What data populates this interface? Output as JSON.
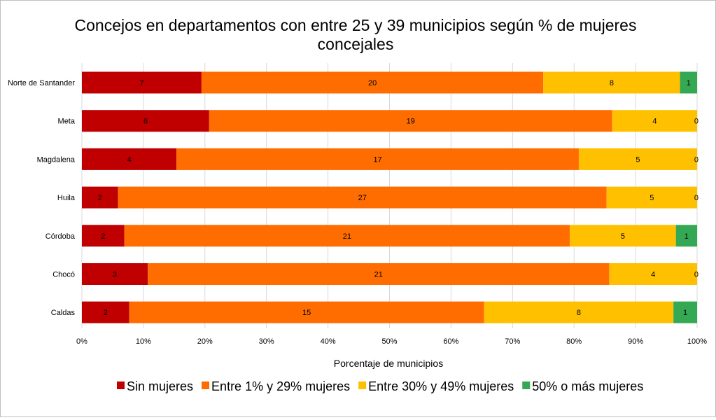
{
  "chart_data": {
    "type": "bar",
    "orientation": "horizontal",
    "stacked": "percent",
    "title_lines": [
      "Concejos en departamentos con entre 25 y 39 municipios según % de mujeres",
      "concejales"
    ],
    "xlabel": "Porcentaje de municipios",
    "ylabel": "",
    "xlim": [
      0,
      100
    ],
    "x_ticks": [
      "0%",
      "10%",
      "20%",
      "30%",
      "40%",
      "50%",
      "60%",
      "70%",
      "80%",
      "90%",
      "100%"
    ],
    "grid": true,
    "legend_position": "bottom",
    "categories": [
      "Norte de Santander",
      "Meta",
      "Magdalena",
      "Huila",
      "Córdoba",
      "Chocó",
      "Caldas"
    ],
    "series": [
      {
        "name": "Sin mujeres",
        "color": "#c00000",
        "values": [
          7,
          6,
          4,
          2,
          2,
          3,
          2
        ]
      },
      {
        "name": "Entre 1% y 29% mujeres",
        "color": "#ff6d00",
        "values": [
          20,
          19,
          17,
          27,
          21,
          21,
          15
        ]
      },
      {
        "name": "Entre 30% y 49% mujeres",
        "color": "#ffc000",
        "values": [
          8,
          4,
          5,
          5,
          5,
          4,
          8
        ]
      },
      {
        "name": "50% o más mujeres",
        "color": "#34a853",
        "values": [
          1,
          0,
          0,
          0,
          1,
          0,
          1
        ]
      }
    ]
  }
}
